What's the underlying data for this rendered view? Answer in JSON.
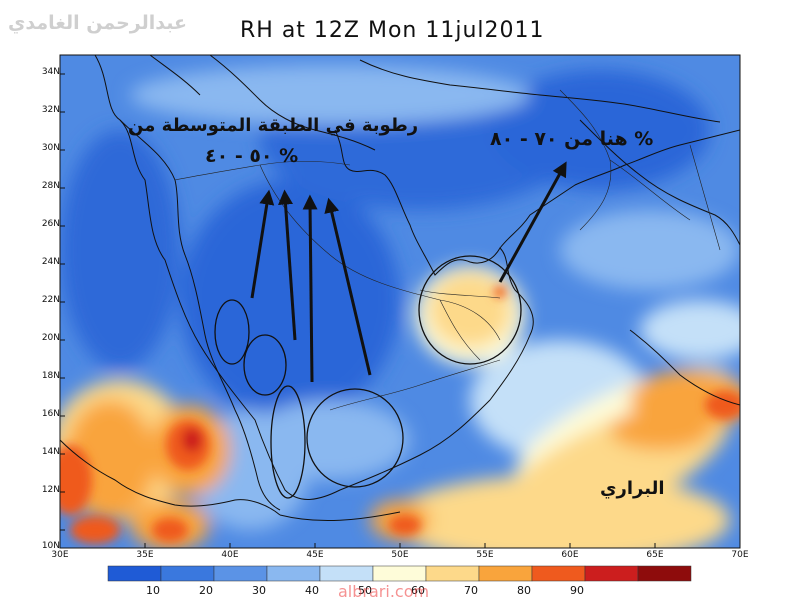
{
  "title": "RH at 12Z Mon 11jul2011",
  "author": "عبدالرحمن الغامدي",
  "watermark": "albrari.com",
  "lat_labels": [
    "34N",
    "32N",
    "30N",
    "28N",
    "26N",
    "24N",
    "22N",
    "20N",
    "18N",
    "16N",
    "14N",
    "12N",
    "10N"
  ],
  "lon_labels": [
    "30E",
    "35E",
    "40E",
    "45E",
    "50E",
    "55E",
    "60E",
    "65E",
    "70E"
  ],
  "colorbar": {
    "labels": [
      "10",
      "20",
      "30",
      "40",
      "50",
      "60",
      "70",
      "80",
      "90"
    ],
    "colors": [
      "#1f5bd6",
      "#3a78de",
      "#5b93e6",
      "#8ab8f0",
      "#c4e0f8",
      "#fefcd9",
      "#fdd98a",
      "#f9a43c",
      "#ef5a1e",
      "#cc1e1e",
      "#8e0c0c"
    ]
  },
  "annotations": {
    "mid_layer": "رطوبة في الطبقة المتوسطة من",
    "mid_layer_range": "% ٥٠ - ٤٠",
    "here_range": "% هنا من ٧٠ - ٨٠",
    "brari": "البراري"
  }
}
